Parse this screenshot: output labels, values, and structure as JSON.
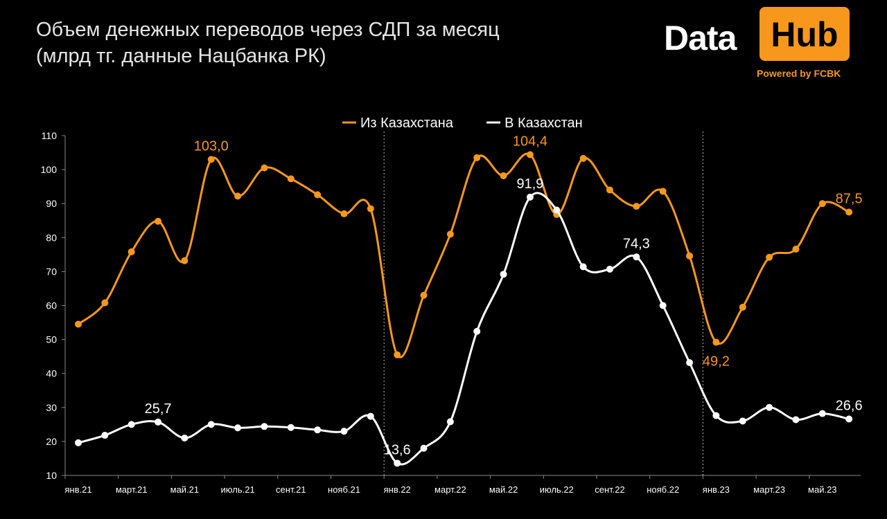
{
  "title_line1": "Объем денежных переводов через СДП за месяц",
  "title_line2": "(млрд тг. данные Нацбанка РК)",
  "logo": {
    "left": "Data",
    "right": "Hub",
    "tagline": "Powered by FCBK",
    "accent": "#f7981d"
  },
  "chart_data": {
    "type": "line",
    "x": [
      "янв.21",
      "фев.21",
      "март.21",
      "апр.21",
      "май.21",
      "июнь.21",
      "июль.21",
      "авг.21",
      "сент.21",
      "окт.21",
      "нояб.21",
      "дек.21",
      "янв.22",
      "фев.22",
      "март.22",
      "апр.22",
      "май.22",
      "июнь.22",
      "июль.22",
      "авг.22",
      "сент.22",
      "окт.22",
      "нояб.22",
      "дек.22",
      "янв.23",
      "фев.23",
      "март.23",
      "апр.23",
      "май.23",
      "июнь.23"
    ],
    "xticks": [
      "янв.21",
      "март.21",
      "май.21",
      "июль.21",
      "сент.21",
      "нояб.21",
      "янв.22",
      "март.22",
      "май.22",
      "июль.22",
      "сент.22",
      "нояб.22",
      "янв.23",
      "март.23",
      "май.23"
    ],
    "ylim": [
      10,
      110
    ],
    "yticks": [
      10,
      20,
      30,
      40,
      50,
      60,
      70,
      80,
      90,
      100,
      110
    ],
    "series": [
      {
        "name": "Из Казахстана",
        "color": "#f7981d",
        "values": [
          54.5,
          60.8,
          75.8,
          84.8,
          73.2,
          103.0,
          92.2,
          100.5,
          97.3,
          92.6,
          87.0,
          88.5,
          45.5,
          63.0,
          81.0,
          103.5,
          98.2,
          104.4,
          86.8,
          103.3,
          94.0,
          89.2,
          93.6,
          74.6,
          49.2,
          59.5,
          74.2,
          76.6,
          90.0,
          87.5
        ],
        "labels": {
          "5": "103,0",
          "17": "104,4",
          "24": "49,2",
          "29": "87,5"
        }
      },
      {
        "name": "В Казахстан",
        "color": "#ffffff",
        "values": [
          19.6,
          21.8,
          25.0,
          25.7,
          21.0,
          25.0,
          24.0,
          24.4,
          24.1,
          23.4,
          23.0,
          27.4,
          13.6,
          18.0,
          25.8,
          52.4,
          69.2,
          91.9,
          88.1,
          71.4,
          70.7,
          74.3,
          60.0,
          43.2,
          27.6,
          26.0,
          30.0,
          26.4,
          28.2,
          26.6
        ],
        "labels": {
          "3": "25,7",
          "12": "13,6",
          "17": "91,9",
          "21": "74,3",
          "29": "26,6"
        }
      }
    ],
    "separators": [
      "янв.22",
      "янв.23"
    ],
    "grid": false,
    "legend": "top-center"
  }
}
